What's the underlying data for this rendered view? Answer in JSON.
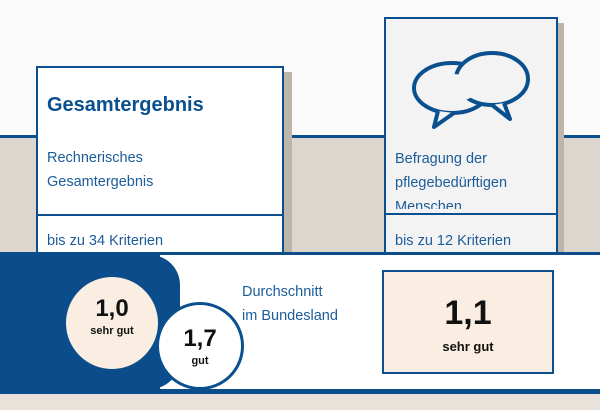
{
  "card_overall": {
    "title": "Gesamtergebnis",
    "subtitle_line1": "Rechnerisches",
    "subtitle_line2": "Gesamtergebnis",
    "criteria": "bis zu 34 Kriterien"
  },
  "card_survey": {
    "icon": "speech-bubbles-icon",
    "line1": "Befragung der",
    "line2": "pflegebedürftigen",
    "line3": "Menschen",
    "criteria": "bis zu 12 Kriterien"
  },
  "overall_score": {
    "value": "1,0",
    "label": "sehr gut"
  },
  "average_score": {
    "value": "1,7",
    "label": "gut"
  },
  "average_caption": {
    "line1": "Durchschnitt",
    "line2": "im Bundesland"
  },
  "survey_score": {
    "value": "1,1",
    "label": "sehr gut"
  },
  "colors": {
    "primary": "#0a4f8e",
    "score_bg": "#faeee3",
    "band_gray": "#ddd6cf"
  }
}
